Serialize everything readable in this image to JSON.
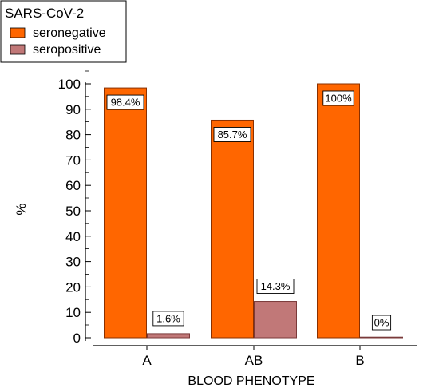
{
  "chart_data": {
    "type": "bar",
    "categories": [
      "A",
      "AB",
      "B"
    ],
    "series": [
      {
        "name": "seronegative",
        "values": [
          98.4,
          85.7,
          100
        ],
        "labels": [
          "98.4%",
          "85.7%",
          "100%"
        ],
        "color": "#ff6600"
      },
      {
        "name": "seropositive",
        "values": [
          1.6,
          14.3,
          0
        ],
        "labels": [
          "1.6%",
          "14.3%",
          "0%"
        ],
        "color": "#c17878"
      }
    ],
    "legend": {
      "title": "SARS-CoV-2",
      "placement": "top-left"
    },
    "xlabel": "BLOOD PHENOTYPE",
    "ylabel": "%",
    "yticks": [
      "0",
      "10",
      "20",
      "30",
      "40",
      "50",
      "60",
      "70",
      "80",
      "90",
      "100"
    ],
    "ylim": [
      0,
      100
    ],
    "grid": false
  }
}
